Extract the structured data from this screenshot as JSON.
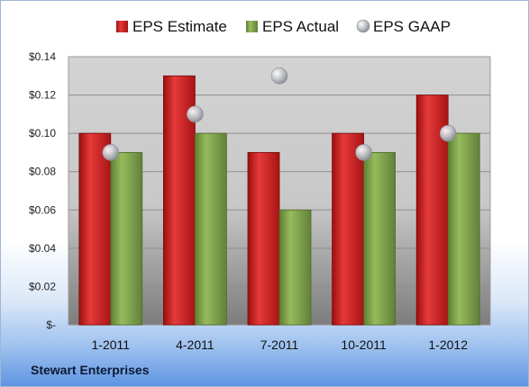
{
  "company": "Stewart Enterprises",
  "chart_data": {
    "type": "bar",
    "categories": [
      "1-2011",
      "4-2011",
      "7-2011",
      "10-2011",
      "1-2012"
    ],
    "series": [
      {
        "name": "EPS Estimate",
        "kind": "bar",
        "color": "#d42a2a",
        "values": [
          0.1,
          0.13,
          0.09,
          0.1,
          0.12
        ]
      },
      {
        "name": "EPS Actual",
        "kind": "bar",
        "color": "#7fa34a",
        "values": [
          0.09,
          0.1,
          0.06,
          0.09,
          0.1
        ]
      },
      {
        "name": "EPS GAAP",
        "kind": "marker",
        "color": "#b8bcc4",
        "values": [
          0.09,
          0.11,
          0.13,
          0.09,
          0.1
        ]
      }
    ],
    "y_ticks": [
      "$-",
      "$0.02",
      "$0.04",
      "$0.06",
      "$0.08",
      "$0.10",
      "$0.12",
      "$0.14"
    ],
    "ylim": [
      0,
      0.14
    ],
    "grid": true,
    "legend_position": "top",
    "title": "",
    "xlabel": "",
    "ylabel": ""
  }
}
